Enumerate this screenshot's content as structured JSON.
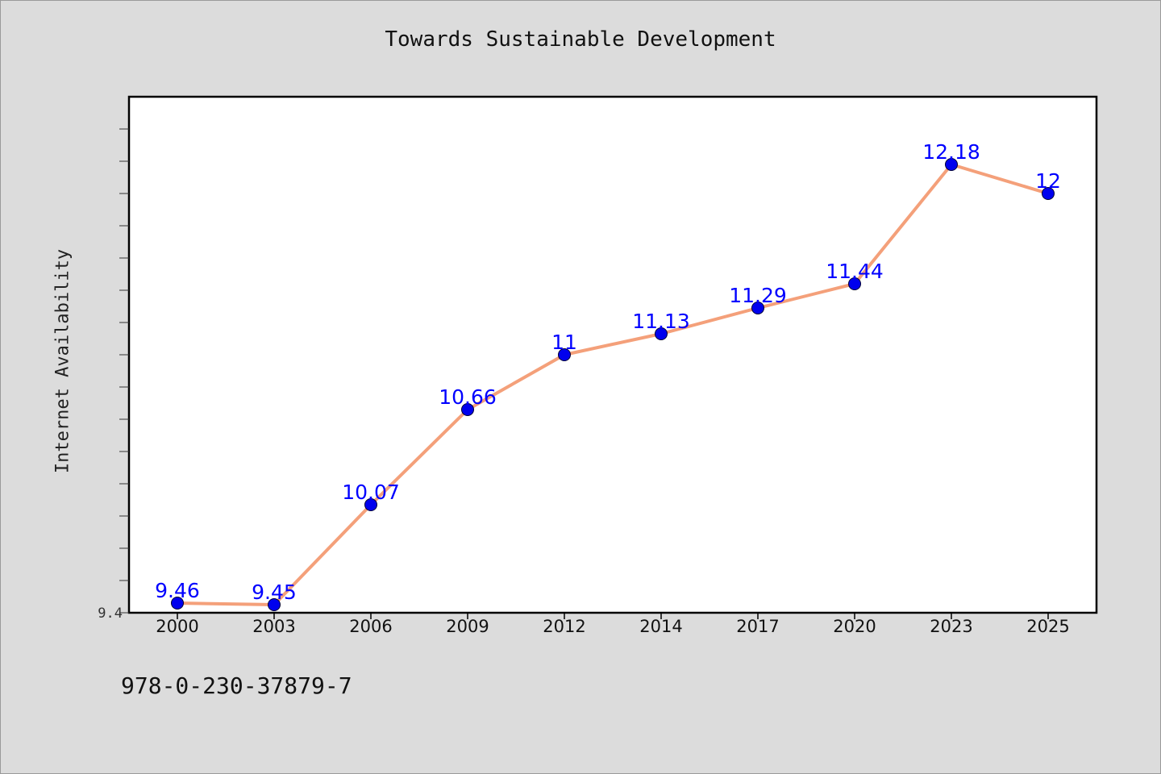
{
  "chart_data": {
    "type": "line",
    "title": "Towards Sustainable Development",
    "xlabel": "",
    "ylabel": "Internet Availability",
    "categories": [
      "2000",
      "2003",
      "2006",
      "2009",
      "2012",
      "2014",
      "2017",
      "2020",
      "2023",
      "2025"
    ],
    "series": [
      {
        "values": [
          9.46,
          9.45,
          10.07,
          10.66,
          11,
          11.13,
          11.29,
          11.44,
          12.18,
          12
        ],
        "data_labels": [
          "9.46",
          "9.45",
          "10.07",
          "10.66",
          "11",
          "11.13",
          "11.29",
          "11.44",
          "12.18",
          "12"
        ]
      }
    ],
    "ylim": [
      9.4,
      12.6
    ],
    "y_tick_labels": [
      "9.4"
    ],
    "grid": false,
    "colors": {
      "line": "#f4a07a",
      "marker": "#0000ee",
      "data_label": "#0000ff",
      "background": "#dcdcdc",
      "plot_area": "#ffffff"
    }
  },
  "footer_text": "978-0-230-37879-7"
}
